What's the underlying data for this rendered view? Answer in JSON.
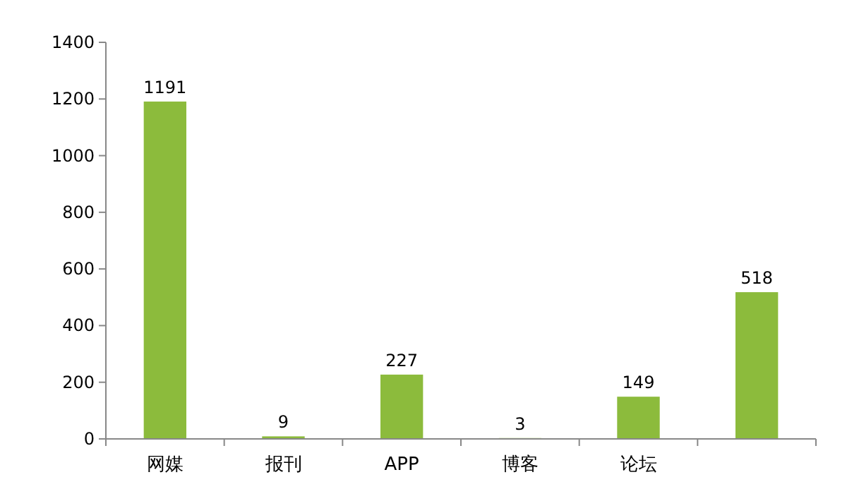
{
  "chart_data": {
    "type": "bar",
    "categories": [
      "网媒",
      "报刊",
      "APP",
      "博客",
      "论坛",
      null
    ],
    "values": [
      1191,
      9,
      227,
      3,
      149,
      518
    ],
    "color": "#8cbb3c",
    "ylim": [
      0,
      1400
    ],
    "yticks": [
      0,
      200,
      400,
      600,
      800,
      1000,
      1200,
      1400
    ],
    "data_labels": true,
    "grid": false
  }
}
